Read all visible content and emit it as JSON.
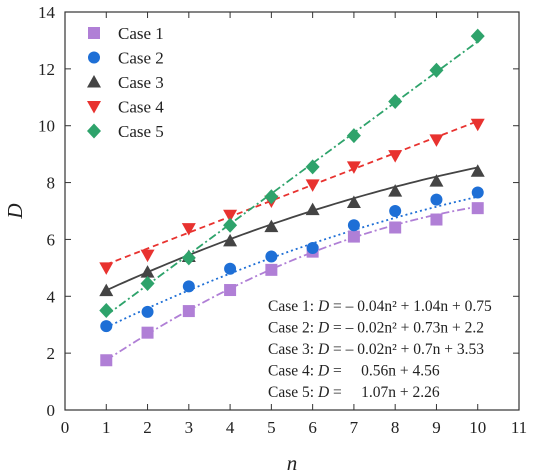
{
  "chart_data": {
    "type": "scatter",
    "xlabel": "n",
    "ylabel": "D",
    "xlim": [
      0,
      11
    ],
    "ylim": [
      0,
      14
    ],
    "xticks": [
      0,
      1,
      2,
      3,
      4,
      5,
      6,
      7,
      8,
      9,
      10,
      11
    ],
    "yticks": [
      0,
      2,
      4,
      6,
      8,
      10,
      12,
      14
    ],
    "x": [
      1,
      2,
      3,
      4,
      5,
      6,
      7,
      8,
      9,
      10
    ],
    "legend_position": "top-left",
    "grid": false,
    "series": [
      {
        "name": "Case 1",
        "marker": "square",
        "color": "#b07fd6",
        "values": [
          1.75,
          2.72,
          3.48,
          4.22,
          4.93,
          5.57,
          6.1,
          6.42,
          6.7,
          7.1
        ],
        "fit": {
          "a": -0.04,
          "b": 1.04,
          "c": 0.75,
          "dash": "8 3 2 3"
        }
      },
      {
        "name": "Case 2",
        "marker": "circle",
        "color": "#1e6fd6",
        "values": [
          2.95,
          3.45,
          4.35,
          4.97,
          5.4,
          5.7,
          6.5,
          7.0,
          7.4,
          7.65
        ],
        "fit": {
          "a": -0.02,
          "b": 0.73,
          "c": 2.2,
          "dash": "2 3"
        }
      },
      {
        "name": "Case 3",
        "marker": "triangle-up",
        "color": "#444444",
        "values": [
          4.2,
          4.85,
          5.4,
          5.95,
          6.45,
          7.05,
          7.3,
          7.7,
          8.05,
          8.4
        ],
        "fit": {
          "a": -0.02,
          "b": 0.7,
          "c": 3.53,
          "dash": ""
        }
      },
      {
        "name": "Case 4",
        "marker": "triangle-down",
        "color": "#e8322f",
        "values": [
          5.0,
          5.45,
          6.38,
          6.85,
          7.35,
          7.92,
          8.55,
          8.95,
          9.5,
          10.05
        ],
        "fit": {
          "a": 0,
          "b": 0.56,
          "c": 4.56,
          "dash": "6 4"
        }
      },
      {
        "name": "Case 5",
        "marker": "diamond",
        "color": "#2ea36b",
        "values": [
          3.5,
          4.45,
          5.35,
          6.5,
          7.5,
          8.55,
          9.65,
          10.85,
          11.95,
          13.15
        ],
        "fit": {
          "a": 0,
          "b": 1.07,
          "c": 2.26,
          "dash": "8 3 2 3"
        }
      }
    ],
    "equations": [
      {
        "prefix": "Case 1: ",
        "var": "D",
        "rhs": " = – 0.04n² + 1.04n + 0.75"
      },
      {
        "prefix": "Case 2: ",
        "var": "D",
        "rhs": " = – 0.02n² + 0.73n + 2.2"
      },
      {
        "prefix": "Case 3: ",
        "var": "D",
        "rhs": " = – 0.02n² + 0.7n + 3.53"
      },
      {
        "prefix": "Case 4: ",
        "var": "D",
        "rhs": " =     0.56n + 4.56"
      },
      {
        "prefix": "Case 5: ",
        "var": "D",
        "rhs": " =     1.07n + 2.26"
      }
    ]
  }
}
